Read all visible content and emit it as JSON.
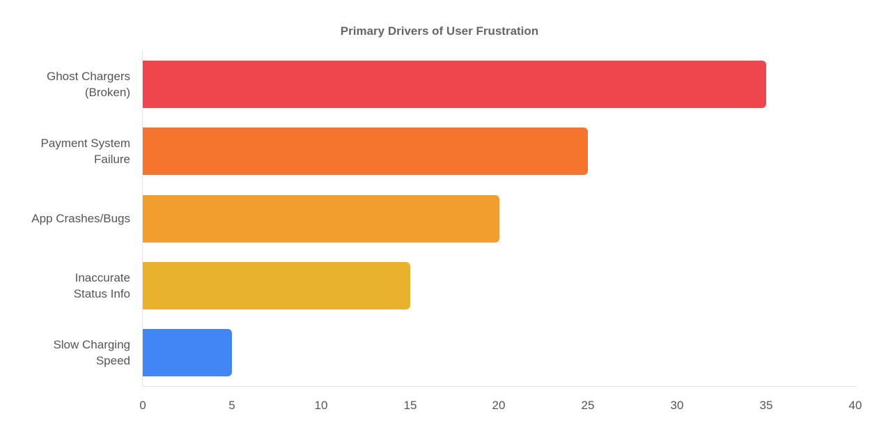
{
  "chart_data": {
    "type": "bar",
    "orientation": "horizontal",
    "title": "Primary Drivers of User Frustration",
    "xlabel": "",
    "ylabel": "",
    "categories": [
      "Ghost Chargers (Broken)",
      "Payment System Failure",
      "App Crashes/Bugs",
      "Inaccurate Status Info",
      "Slow Charging Speed"
    ],
    "values": [
      35,
      25,
      20,
      15,
      5
    ],
    "colors": [
      "#ee464c",
      "#f5752f",
      "#f29e2e",
      "#e8b22e",
      "#4285f4"
    ],
    "xlim": [
      0,
      40
    ],
    "x_ticks": [
      "0",
      "5",
      "10",
      "15",
      "20",
      "25",
      "30",
      "35",
      "40"
    ],
    "grid": false,
    "legend": "none"
  },
  "labels": {
    "title": "Primary Drivers of User Frustration",
    "y": [
      "Ghost Chargers\n(Broken)",
      "Payment System\nFailure",
      "App Crashes/Bugs",
      "Inaccurate\nStatus Info",
      "Slow Charging\nSpeed"
    ],
    "x_ticks": [
      "0",
      "5",
      "10",
      "15",
      "20",
      "25",
      "30",
      "35",
      "40"
    ]
  }
}
